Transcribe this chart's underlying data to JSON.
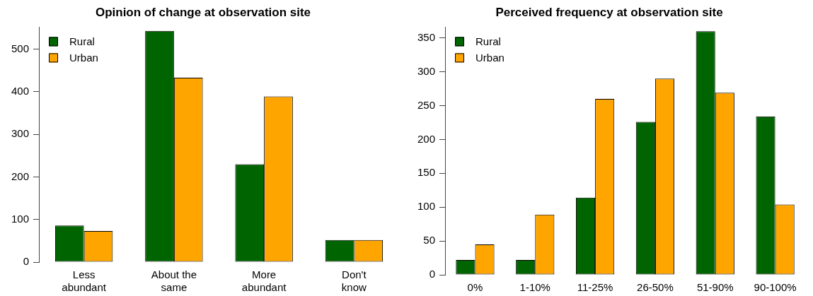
{
  "chart_data": [
    {
      "type": "bar",
      "title": "Opinion of change at observation site",
      "categories": [
        "Less abundant",
        "About the same",
        "More abundant",
        "Don't know"
      ],
      "series": [
        {
          "name": "Rural",
          "color": "#006400",
          "values": [
            86,
            543,
            230,
            52
          ]
        },
        {
          "name": "Urban",
          "color": "#ffa500",
          "values": [
            73,
            433,
            389,
            52
          ]
        }
      ],
      "ylim": [
        0,
        552
      ],
      "yticks": [
        0,
        100,
        200,
        300,
        400,
        500
      ],
      "grid": false,
      "legend": "top left"
    },
    {
      "type": "bar",
      "title": "Perceived frequency at observation site",
      "categories": [
        "0%",
        "1-10%",
        "11-25%",
        "26-50%",
        "51-90%",
        "90-100%"
      ],
      "series": [
        {
          "name": "Rural",
          "color": "#006400",
          "values": [
            22,
            22,
            114,
            226,
            360,
            234
          ]
        },
        {
          "name": "Urban",
          "color": "#ffa500",
          "values": [
            45,
            89,
            260,
            290,
            269,
            104
          ]
        }
      ],
      "ylim": [
        0,
        366
      ],
      "yticks": [
        0,
        50,
        100,
        150,
        200,
        250,
        300,
        350
      ],
      "grid": false,
      "legend": "top left"
    }
  ]
}
